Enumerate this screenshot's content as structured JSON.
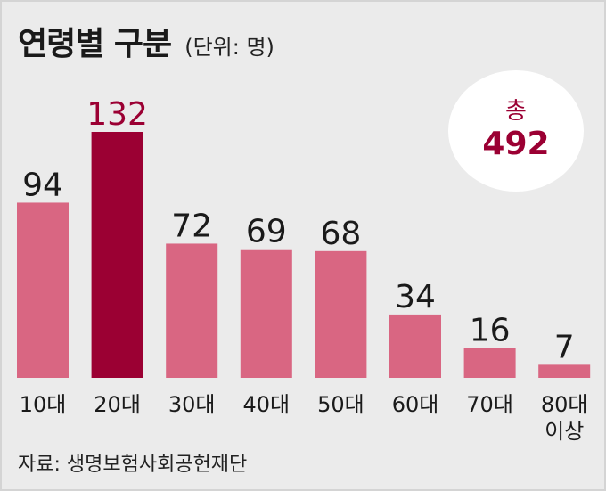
{
  "title": "연령별 구분",
  "unit": "(단위: 명)",
  "total": {
    "label": "총",
    "value": "492"
  },
  "source": "자료: 생명보험사회공헌재단",
  "colors": {
    "bar": "#d96682",
    "highlight": "#9b0033",
    "background": "#ebebeb"
  },
  "chart_data": {
    "type": "bar",
    "categories": [
      "10대",
      "20대",
      "30대",
      "40대",
      "50대",
      "60대",
      "70대",
      "80대 이상"
    ],
    "category_lines": [
      [
        "10대"
      ],
      [
        "20대"
      ],
      [
        "30대"
      ],
      [
        "40대"
      ],
      [
        "50대"
      ],
      [
        "60대"
      ],
      [
        "70대"
      ],
      [
        "80대",
        "이상"
      ]
    ],
    "values": [
      94,
      132,
      72,
      69,
      68,
      34,
      16,
      7
    ],
    "value_labels": [
      "94",
      "132",
      "72",
      "69",
      "68",
      "34",
      "16",
      "7"
    ],
    "highlight_index": 1,
    "title": "연령별 구분",
    "xlabel": "",
    "ylabel": "",
    "ylim": [
      0,
      132
    ],
    "grid": false,
    "legend": "none"
  }
}
